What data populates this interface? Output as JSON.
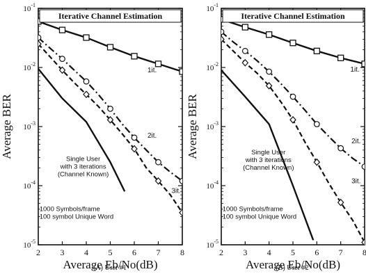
{
  "chart_data": [
    {
      "type": "line",
      "title": "Iterative Channel Estimation",
      "caption": "(A) User #1",
      "xlabel": "Average Eb/No(dB)",
      "ylabel": "Average BER",
      "xlim": [
        2,
        8
      ],
      "ylim": [
        1e-05,
        0.1
      ],
      "yscale": "log",
      "x_ticks": [
        "2",
        "3",
        "4",
        "5",
        "6",
        "7",
        "8"
      ],
      "y_ticks": [
        {
          "base": "10",
          "exp": "-1",
          "value": 0.1
        },
        {
          "base": "10",
          "exp": "-2",
          "value": 0.01
        },
        {
          "base": "10",
          "exp": "-3",
          "value": 0.001
        },
        {
          "base": "10",
          "exp": "-4",
          "value": 0.0001
        },
        {
          "base": "10",
          "exp": "-5",
          "value": 1e-05
        }
      ],
      "series": [
        {
          "name": "1it.",
          "marker": "square",
          "dash": "solid",
          "width": 2.4,
          "x": [
            2,
            3,
            4,
            5,
            6,
            7,
            8
          ],
          "y": [
            0.06,
            0.043,
            0.032,
            0.022,
            0.0155,
            0.0115,
            0.0085
          ]
        },
        {
          "name": "2it.",
          "marker": "circle",
          "dash": "dashdot",
          "width": 2.2,
          "x": [
            2,
            2.5,
            3,
            3.5,
            4,
            4.5,
            5,
            5.5,
            6,
            6.5,
            7,
            7.5,
            8
          ],
          "y": [
            0.032,
            0.021,
            0.014,
            0.009,
            0.0058,
            0.0035,
            0.002,
            0.0011,
            0.00065,
            0.0004,
            0.00025,
            0.00017,
            0.00012
          ]
        },
        {
          "name": "3it.",
          "marker": "diamond",
          "dash": "dash",
          "width": 2.2,
          "x": [
            2,
            2.5,
            3,
            3.5,
            4,
            4.5,
            5,
            5.5,
            6,
            6.5,
            7,
            7.5,
            8
          ],
          "y": [
            0.025,
            0.015,
            0.009,
            0.0055,
            0.0035,
            0.0022,
            0.0013,
            0.00075,
            0.00042,
            0.0002,
            0.00012,
            7e-05,
            3.5e-05
          ]
        },
        {
          "name": "Single User with 3 iterations (Channel Known)",
          "marker": "none",
          "dash": "solid",
          "width": 2.4,
          "x": [
            2,
            3,
            4,
            5,
            5.6
          ],
          "y": [
            0.0095,
            0.003,
            0.0012,
            0.00025,
            8e-05
          ]
        }
      ],
      "annotations": [
        {
          "text": "1it.",
          "x": 6.55,
          "y": 0.0083
        },
        {
          "text": "2it.",
          "x": 6.55,
          "y": 0.00065
        },
        {
          "text": "3it.",
          "x": 7.55,
          "y": 7.5e-05
        },
        {
          "lines": [
            "Single User",
            "with 3 iterations",
            "(Channel Known)"
          ],
          "x": 3.35,
          "y": 0.00026
        },
        {
          "lines": [
            "1000 Symbols/frame",
            "100 symbol Unique Word"
          ],
          "x": 2.05,
          "y": 3.7e-05
        }
      ]
    },
    {
      "type": "line",
      "title": "Iterative Channel Estimation",
      "caption": "(B) User #2",
      "xlabel": "Average Eb/No(dB)",
      "ylabel": "Average BER",
      "xlim": [
        2,
        8
      ],
      "ylim": [
        1e-05,
        0.1
      ],
      "yscale": "log",
      "x_ticks": [
        "2",
        "3",
        "4",
        "5",
        "6",
        "7",
        "8"
      ],
      "y_ticks": [
        {
          "base": "10",
          "exp": "-1",
          "value": 0.1
        },
        {
          "base": "10",
          "exp": "-2",
          "value": 0.01
        },
        {
          "base": "10",
          "exp": "-3",
          "value": 0.001
        },
        {
          "base": "10",
          "exp": "-4",
          "value": 0.0001
        },
        {
          "base": "10",
          "exp": "-5",
          "value": 1e-05
        }
      ],
      "series": [
        {
          "name": "1it.",
          "marker": "square",
          "dash": "solid",
          "width": 2.4,
          "x": [
            2,
            3,
            4,
            5,
            6,
            7,
            8
          ],
          "y": [
            0.065,
            0.048,
            0.036,
            0.026,
            0.019,
            0.0145,
            0.0115
          ]
        },
        {
          "name": "2it.",
          "marker": "circle",
          "dash": "dashdot",
          "width": 2.2,
          "x": [
            2,
            2.5,
            3,
            3.5,
            4,
            4.5,
            5,
            5.5,
            6,
            6.5,
            7,
            7.5,
            8
          ],
          "y": [
            0.04,
            0.027,
            0.019,
            0.013,
            0.0085,
            0.0053,
            0.0032,
            0.0019,
            0.0011,
            0.00068,
            0.00043,
            0.00029,
            0.00021
          ]
        },
        {
          "name": "3it.",
          "marker": "diamond",
          "dash": "dash",
          "width": 2.2,
          "x": [
            2,
            2.5,
            3,
            3.5,
            4,
            4.5,
            5,
            5.5,
            6,
            6.5,
            7,
            7.5,
            8
          ],
          "y": [
            0.03,
            0.019,
            0.012,
            0.008,
            0.0049,
            0.0026,
            0.0013,
            0.00055,
            0.00025,
            0.00011,
            5.2e-05,
            2.6e-05,
            1.1e-05
          ]
        },
        {
          "name": "Single User with 3 iterations (Channel Known)",
          "marker": "none",
          "dash": "solid",
          "width": 2.4,
          "x": [
            2,
            3,
            4,
            5,
            5.85
          ],
          "y": [
            0.009,
            0.0032,
            0.0011,
            0.0001,
            1.2e-05
          ]
        }
      ],
      "annotations": [
        {
          "text": "1it.",
          "x": 7.4,
          "y": 0.0085
        },
        {
          "text": "2it.",
          "x": 7.45,
          "y": 0.00052
        },
        {
          "text": "3it.",
          "x": 7.45,
          "y": 0.00011
        },
        {
          "lines": [
            "Single User",
            "with 3 iterations",
            "(Channel Known)"
          ],
          "x": 3.45,
          "y": 0.00034
        },
        {
          "lines": [
            "1000 Symbols/frame",
            "100 symbol Unique Word"
          ],
          "x": 2.05,
          "y": 3.7e-05
        }
      ]
    }
  ]
}
